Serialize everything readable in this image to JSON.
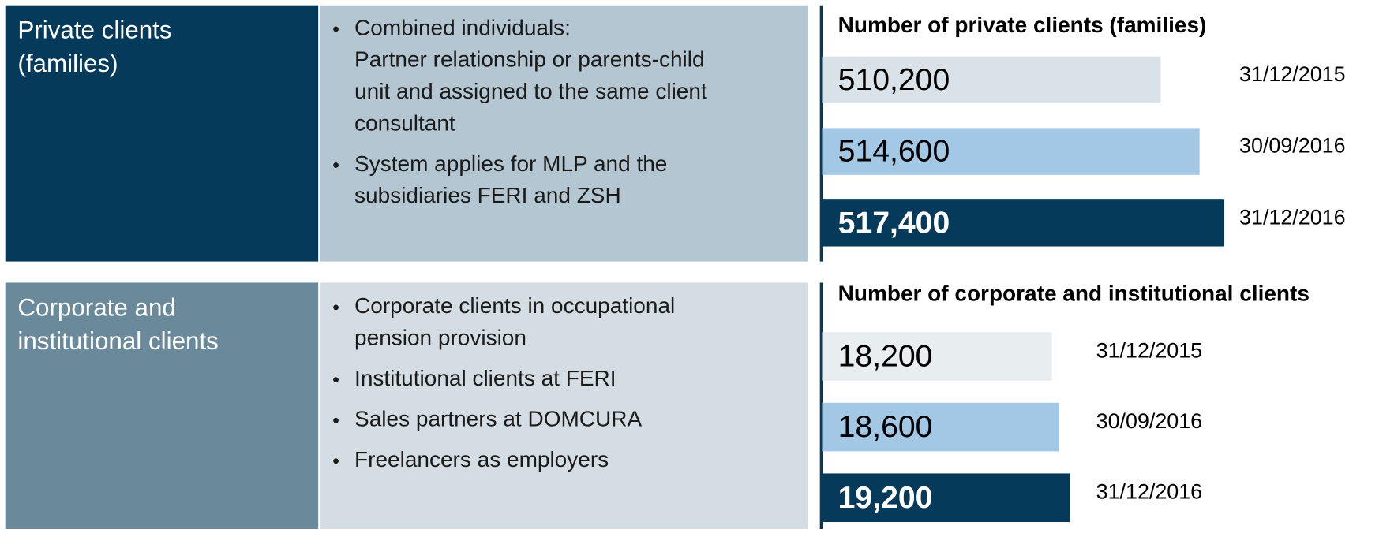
{
  "sections": [
    {
      "label": [
        "Private clients",
        "(families)"
      ],
      "bullets": [
        [
          "Combined individuals:",
          "Partner relationship or parents-child",
          "unit and assigned to the same client",
          "consultant"
        ],
        [
          "System applies for MLP and the",
          "subsidiaries FERI and ZSH"
        ]
      ]
    },
    {
      "label": [
        "Corporate and",
        "institutional clients"
      ],
      "bullets": [
        [
          "Corporate clients in occupational",
          "pension provision"
        ],
        [
          "Institutional clients at FERI"
        ],
        [
          "Sales partners at DOMCURA"
        ],
        [
          "Freelancers as employers"
        ]
      ]
    }
  ],
  "chart_data": [
    {
      "type": "bar",
      "title": "Number of private clients (families)",
      "categories": [
        "31/12/2015",
        "30/09/2016",
        "31/12/2016"
      ],
      "values": [
        510200,
        514600,
        517400
      ],
      "value_labels": [
        "510,200",
        "514,600",
        "517,400"
      ],
      "colors": [
        "#d9e2e8",
        "#a3c8e6",
        "#063a5a"
      ],
      "xlim": [
        471900,
        520000
      ]
    },
    {
      "type": "bar",
      "title": "Number of corporate and institutional clients",
      "categories": [
        "31/12/2015",
        "30/09/2016",
        "31/12/2016"
      ],
      "values": [
        18200,
        18600,
        19200
      ],
      "value_labels": [
        "18,200",
        "18,600",
        "19,200"
      ],
      "colors": [
        "#e8edf0",
        "#a3c8e6",
        "#063a5a"
      ],
      "xlim": [
        5200,
        20000
      ]
    }
  ]
}
